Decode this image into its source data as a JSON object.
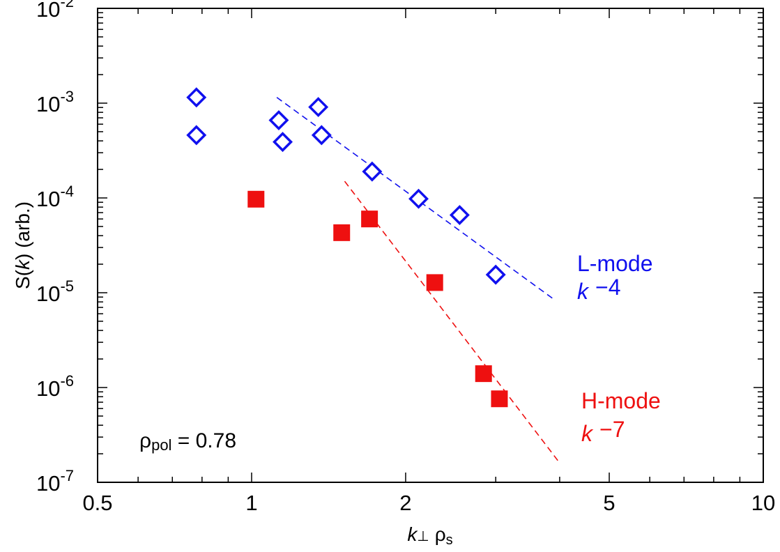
{
  "chart_data": {
    "type": "scatter",
    "x_scale": "log",
    "y_scale": "log",
    "xlim": [
      0.5,
      10
    ],
    "ylim": [
      1e-07,
      0.01
    ],
    "xlabel": "k⊥ ρs",
    "ylabel": "S(k)  (arb.)",
    "x_ticks": [
      {
        "value": 0.5,
        "label": "0.5"
      },
      {
        "value": 1,
        "label": "1"
      },
      {
        "value": 2,
        "label": "2"
      },
      {
        "value": 5,
        "label": "5"
      },
      {
        "value": 10,
        "label": "10"
      }
    ],
    "y_ticks": [
      {
        "value": 1e-07,
        "base": "10",
        "exp": "-7"
      },
      {
        "value": 1e-06,
        "base": "10",
        "exp": "-6"
      },
      {
        "value": 1e-05,
        "base": "10",
        "exp": "-5"
      },
      {
        "value": 0.0001,
        "base": "10",
        "exp": "-4"
      },
      {
        "value": 0.001,
        "base": "10",
        "exp": "-3"
      },
      {
        "value": 0.01,
        "base": "10",
        "exp": "-2"
      }
    ],
    "series": [
      {
        "name": "L-mode",
        "marker": "diamond-open",
        "color": "#1010ee",
        "x": [
          0.78,
          0.78,
          1.13,
          1.15,
          1.35,
          1.37,
          1.72,
          2.12,
          2.55,
          3.0
        ],
        "y": [
          0.00115,
          0.00046,
          0.00066,
          0.00039,
          0.00091,
          0.00046,
          0.00019,
          9.8e-05,
          6.6e-05,
          1.55e-05
        ],
        "fit": {
          "label": "k −4",
          "x": [
            1.12,
            3.9
          ],
          "y": [
            0.00115,
            8.5e-06
          ],
          "style": "dashed"
        }
      },
      {
        "name": "H-mode",
        "marker": "square-filled",
        "color": "#ee1010",
        "x": [
          1.02,
          1.5,
          1.7,
          2.28,
          2.84,
          3.05
        ],
        "y": [
          9.7e-05,
          4.3e-05,
          6e-05,
          1.28e-05,
          1.4e-06,
          7.6e-07
        ],
        "fit": {
          "label": "k −7",
          "x": [
            1.52,
            4.0
          ],
          "y": [
            0.00015,
            1.6e-07
          ],
          "style": "dashed"
        }
      }
    ],
    "annotations": [
      {
        "text": "ρpol = 0.78",
        "main": "ρ",
        "sub": "pol",
        "rest": " = 0.78"
      }
    ]
  },
  "legend_labels": {
    "l_mode": {
      "name": "L-mode",
      "k": "k",
      "exponent": "−4",
      "color": "#1010ee"
    },
    "h_mode": {
      "name": "H-mode",
      "k": "k",
      "exponent": "−7",
      "color": "#ee1010"
    }
  },
  "axis_text": {
    "xlabel_k": "k",
    "xlabel_perp": "⊥",
    "xlabel_rho": "ρ",
    "xlabel_s": "s",
    "ylabel_s": "S(",
    "ylabel_k": "k",
    "ylabel_rest": ")  (arb.)"
  }
}
